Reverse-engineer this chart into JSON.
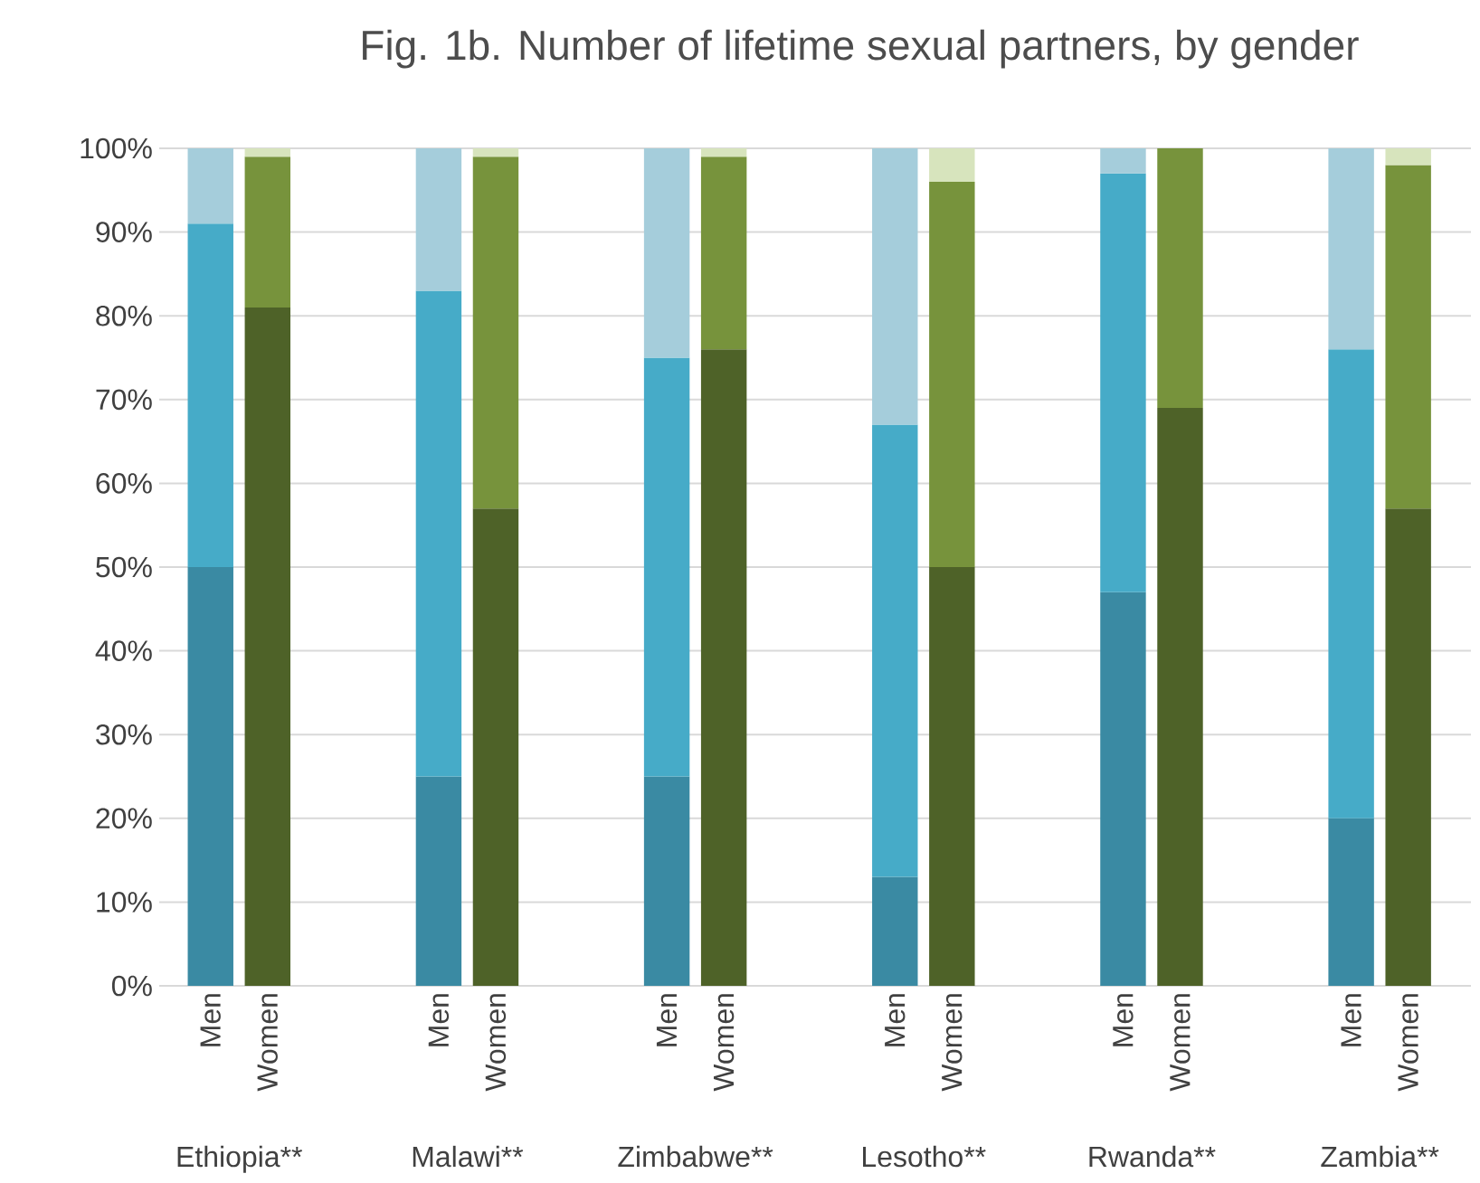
{
  "chart_data": {
    "type": "bar",
    "stacked": true,
    "title": "Fig. 1b. Number of lifetime sexual partners, by gender",
    "categories": [
      "Men",
      "Women",
      "Men",
      "Women",
      "Men",
      "Women",
      "Men",
      "Women",
      "Men",
      "Women",
      "Men",
      "Women"
    ],
    "series": [
      {
        "colors": [
          "#3a8aa3",
          "#4e6228",
          "#3a8aa3",
          "#4e6228",
          "#3a8aa3",
          "#4e6228",
          "#3a8aa3",
          "#4e6228",
          "#3a8aa3",
          "#4e6228",
          "#3a8aa3",
          "#4e6228"
        ],
        "values": [
          50,
          81,
          25,
          57,
          25,
          76,
          13,
          50,
          47,
          69,
          20,
          57
        ]
      },
      {
        "colors": [
          "#46abc8",
          "#77933c",
          "#46abc8",
          "#77933c",
          "#46abc8",
          "#77933c",
          "#46abc8",
          "#77933c",
          "#46abc8",
          "#77933c",
          "#46abc8",
          "#77933c"
        ],
        "values": [
          41,
          18,
          58,
          42,
          50,
          23,
          54,
          46,
          50,
          31,
          56,
          41
        ]
      },
      {
        "colors": [
          "#a5cddb",
          "#d7e4bd",
          "#a5cddb",
          "#d7e4bd",
          "#a5cddb",
          "#d7e4bd",
          "#a5cddb",
          "#d7e4bd",
          "#a5cddb",
          "#d7e4bd",
          "#a5cddb",
          "#d7e4bd"
        ],
        "values": [
          9,
          1,
          17,
          1,
          25,
          1,
          33,
          4,
          3,
          0,
          24,
          2
        ]
      }
    ],
    "ylim": [
      0,
      100
    ],
    "yticks": [
      {
        "value": 0,
        "label": "0%"
      },
      {
        "value": 10,
        "label": "10%"
      },
      {
        "value": 20,
        "label": "20%"
      },
      {
        "value": 30,
        "label": "30%"
      },
      {
        "value": 40,
        "label": "40%"
      },
      {
        "value": 50,
        "label": "50%"
      },
      {
        "value": 60,
        "label": "60%"
      },
      {
        "value": 70,
        "label": "70%"
      },
      {
        "value": 80,
        "label": "80%"
      },
      {
        "value": 90,
        "label": "90%"
      },
      {
        "value": 100,
        "label": "100%"
      }
    ],
    "grid": "y",
    "annotations": [
      "Ethiopia**",
      "Malawi**",
      "Zimbabwe**",
      "Lesotho**",
      "Rwanda**",
      "Zambia**"
    ]
  }
}
